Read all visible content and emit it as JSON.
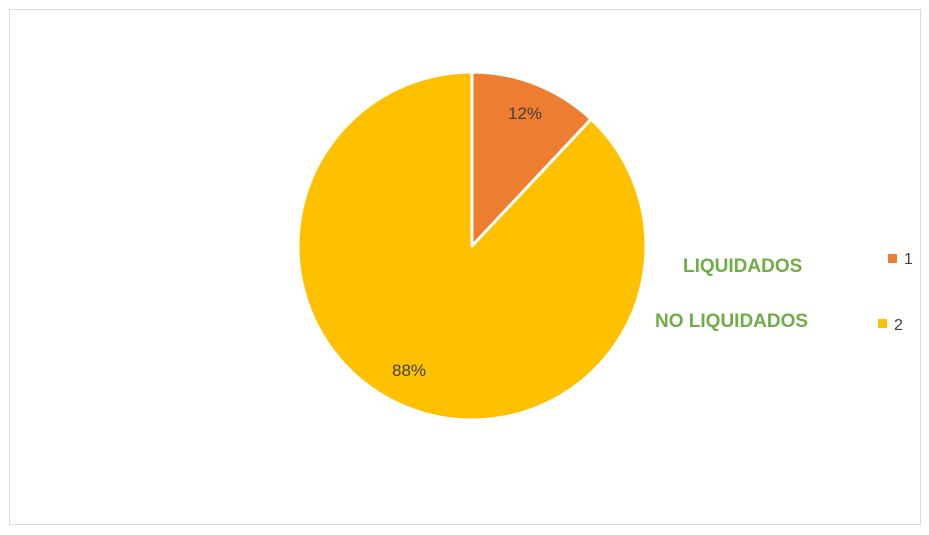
{
  "chart_data": {
    "type": "pie",
    "categories": [
      "1",
      "2"
    ],
    "values": [
      12,
      88
    ],
    "data_labels": [
      "12%",
      "88%"
    ],
    "colors": [
      "#ED7D31",
      "#FFC000"
    ],
    "legend_position": "right",
    "annotations": [
      "LIQUIDADOS",
      "NO LIQUIDADOS"
    ],
    "annotation_color": "#70AD47"
  }
}
